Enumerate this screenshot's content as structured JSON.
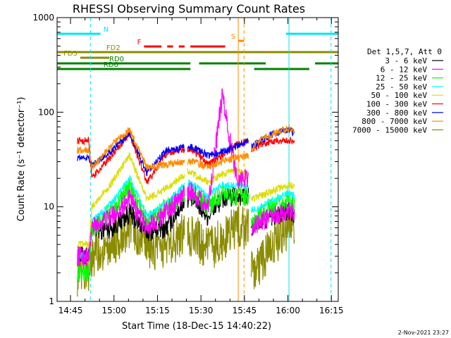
{
  "chart_data": {
    "type": "line",
    "title": "RHESSI Observing Summary Count Rates",
    "xlabel": "Start Time (18-Dec-15 14:40:22)",
    "ylabel": "Count Rate (s⁻¹ detector⁻¹)",
    "yscale": "log",
    "xlim_minutes": [
      0,
      97
    ],
    "ylim": [
      1,
      1000
    ],
    "x_ticks": [
      "14:45",
      "15:00",
      "15:15",
      "15:30",
      "15:45",
      "16:00",
      "16:15"
    ],
    "y_ticks": [
      "1",
      "10",
      "100",
      "1000"
    ],
    "legend": {
      "header": "Det 1,5,7, Att 0",
      "placement": "right"
    },
    "series": [
      {
        "name": "3 - 6 keV",
        "color": "#000000"
      },
      {
        "name": "6 - 12 keV",
        "color": "#ff00ff"
      },
      {
        "name": "12 - 25 keV",
        "color": "#00ff00"
      },
      {
        "name": "25 - 50 keV",
        "color": "#00ffff"
      },
      {
        "name": "50 - 100 keV",
        "color": "#dddd00"
      },
      {
        "name": "100 - 300 keV",
        "color": "#ff0000"
      },
      {
        "name": "300 - 800 keV",
        "color": "#0000ff"
      },
      {
        "name": "800 - 7000 keV",
        "color": "#ff8c00"
      },
      {
        "name": "7000 - 15000 keV",
        "color": "#8b8b00"
      }
    ],
    "shape_points_minutes": {
      "t": [
        7,
        11,
        12,
        19,
        25,
        31,
        38,
        44,
        45,
        47,
        52,
        57,
        62,
        66,
        67,
        70,
        75,
        80,
        82
      ],
      "base": [
        [
          3,
          3,
          5.5,
          6,
          8.5,
          5.5,
          6,
          12,
          12.5,
          12,
          8,
          12,
          13,
          13,
          6,
          7,
          8,
          9,
          8
        ],
        [
          3,
          3,
          6,
          8,
          12,
          6,
          9,
          14,
          15,
          14,
          10,
          150,
          20,
          20,
          6,
          7,
          8,
          9,
          8
        ],
        [
          2,
          2,
          6,
          9,
          16,
          7,
          10,
          14,
          15,
          14,
          10,
          14,
          13,
          13,
          6,
          8,
          10,
          12,
          11
        ],
        [
          3,
          3,
          7,
          11,
          20,
          8,
          11,
          17,
          18,
          17,
          13,
          17,
          17,
          16,
          9,
          10,
          12,
          14,
          13
        ],
        [
          4,
          4,
          10,
          18,
          35,
          12,
          16,
          22,
          24,
          22,
          18,
          22,
          24,
          22,
          12,
          13,
          15,
          17,
          16
        ],
        [
          50,
          50,
          20,
          35,
          60,
          18,
          38,
          40,
          40,
          40,
          28,
          35,
          45,
          50,
          40,
          45,
          50,
          50,
          48
        ],
        [
          33,
          33,
          27,
          40,
          60,
          23,
          40,
          42,
          44,
          42,
          35,
          38,
          44,
          50,
          43,
          50,
          60,
          65,
          60
        ],
        [
          40,
          40,
          26,
          45,
          65,
          26,
          28,
          30,
          30,
          30,
          26,
          30,
          33,
          35,
          40,
          50,
          60,
          68,
          64
        ],
        [
          1.8,
          1.8,
          3.0,
          4.0,
          6.0,
          3.5,
          4.0,
          5.0,
          5.0,
          5.0,
          3.5,
          4.5,
          6.0,
          6.0,
          2.0,
          2.5,
          4.0,
          6.0,
          5.0
        ]
      ],
      "segments": [
        [
          7,
          44
        ],
        [
          45,
          66
        ],
        [
          67,
          82
        ]
      ]
    },
    "flag_bars": [
      {
        "label": "N",
        "color": "#00e5ee",
        "y_level": 0,
        "spans": [
          [
            0,
            15
          ],
          [
            79,
            97
          ]
        ]
      },
      {
        "label": "S",
        "color": "#ff8c00",
        "y_level": 1,
        "spans": [
          [
            62.5,
            64.5
          ]
        ]
      },
      {
        "label": "F",
        "color": "#ff0000",
        "y_level": 2,
        "spans": [
          [
            30,
            36
          ],
          [
            38,
            40
          ],
          [
            42,
            44
          ],
          [
            46,
            58
          ]
        ]
      },
      {
        "label": "FD2",
        "color": "#8b8b00",
        "y_level": 3,
        "spans": [
          [
            0,
            97
          ]
        ]
      },
      {
        "label": "FD3",
        "color": "#8b8b00",
        "y_level": 4,
        "spans": [
          [
            8,
            18
          ]
        ]
      },
      {
        "label": "RD0",
        "color": "#008000",
        "y_level": 5,
        "spans": [
          [
            0,
            46
          ],
          [
            49,
            72
          ],
          [
            89,
            97
          ]
        ]
      },
      {
        "label": "RD6",
        "color": "#008000",
        "y_level": 6,
        "spans": [
          [
            0,
            46
          ],
          [
            68,
            87
          ]
        ]
      }
    ],
    "vertical_markers": [
      {
        "minute": 11.5,
        "color": "#00e5ee",
        "style": "dashed"
      },
      {
        "minute": 62.5,
        "color": "#ff8c00",
        "style": "solid"
      },
      {
        "minute": 64.5,
        "color": "#ff8c00",
        "style": "dashed"
      },
      {
        "minute": 80.0,
        "color": "#00e5ee",
        "style": "solid"
      },
      {
        "minute": 94.5,
        "color": "#00e5ee",
        "style": "dashed"
      }
    ],
    "timestamp": "2-Nov-2021 23:27"
  }
}
